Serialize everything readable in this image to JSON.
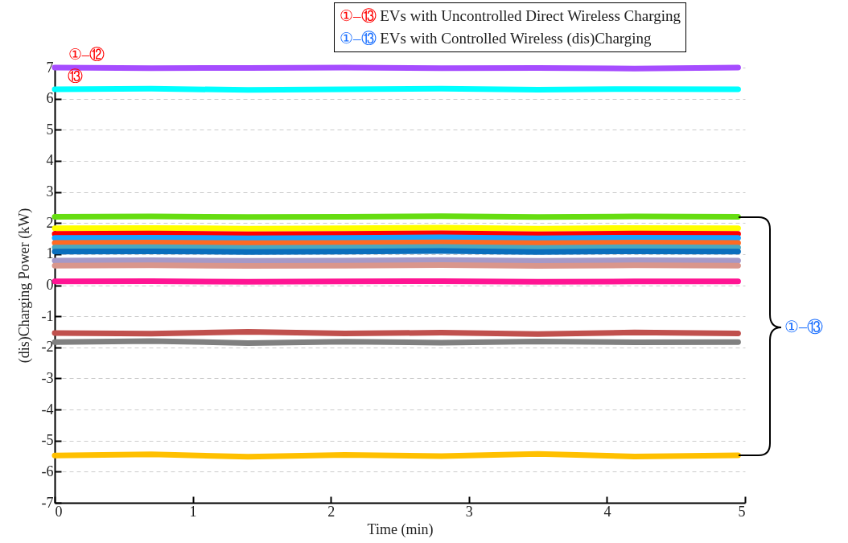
{
  "chart_data": {
    "type": "line",
    "xlabel": "Time (min)",
    "ylabel": "(dis)Charging Power (kW)",
    "x": [
      0,
      0.7,
      1.4,
      2.1,
      2.8,
      3.5,
      4.2,
      4.95
    ],
    "series": [
      {
        "color": "#a64dff",
        "values": [
          7,
          6.98,
          6.99,
          7,
          6.98,
          6.99,
          6.97,
          7
        ]
      },
      {
        "color": "#00ffff",
        "values": [
          6.3,
          6.32,
          6.28,
          6.3,
          6.32,
          6.29,
          6.31,
          6.3
        ]
      },
      {
        "color": "#66dd11",
        "values": [
          2.2,
          2.21,
          2.19,
          2.2,
          2.22,
          2.19,
          2.21,
          2.2
        ]
      },
      {
        "color": "#ffff00",
        "values": [
          1.83,
          1.84,
          1.82,
          1.83,
          1.85,
          1.82,
          1.84,
          1.83
        ]
      },
      {
        "color": "#ff0000",
        "values": [
          1.65,
          1.66,
          1.64,
          1.65,
          1.67,
          1.64,
          1.66,
          1.65
        ]
      },
      {
        "color": "#1aa3ff",
        "values": [
          1.52,
          1.53,
          1.51,
          1.52,
          1.54,
          1.51,
          1.53,
          1.52
        ]
      },
      {
        "color": "#ff6a22",
        "values": [
          1.36,
          1.37,
          1.35,
          1.36,
          1.38,
          1.35,
          1.37,
          1.36
        ]
      },
      {
        "color": "#4aa8c0",
        "values": [
          1.21,
          1.22,
          1.2,
          1.21,
          1.23,
          1.2,
          1.22,
          1.21
        ]
      },
      {
        "color": "#0a6ebd",
        "values": [
          1.08,
          1.09,
          1.07,
          1.08,
          1.1,
          1.07,
          1.09,
          1.08
        ]
      },
      {
        "color": "#a599c8",
        "values": [
          0.79,
          0.8,
          0.78,
          0.79,
          0.81,
          0.78,
          0.8,
          0.79
        ]
      },
      {
        "color": "#d9968c",
        "values": [
          0.63,
          0.64,
          0.62,
          0.63,
          0.65,
          0.62,
          0.64,
          0.63
        ]
      },
      {
        "color": "#ff1493",
        "values": [
          0.12,
          0.13,
          0.11,
          0.12,
          0.13,
          0.11,
          0.12,
          0.12
        ]
      },
      {
        "color": "#c0504d",
        "values": [
          -1.54,
          -1.56,
          -1.5,
          -1.55,
          -1.53,
          -1.57,
          -1.52,
          -1.55
        ]
      },
      {
        "color": "#808080",
        "values": [
          -1.83,
          -1.8,
          -1.86,
          -1.82,
          -1.85,
          -1.81,
          -1.84,
          -1.83
        ]
      },
      {
        "color": "#ffc000",
        "values": [
          -5.48,
          -5.44,
          -5.52,
          -5.46,
          -5.5,
          -5.43,
          -5.51,
          -5.47
        ]
      }
    ],
    "xlim": [
      0,
      5
    ],
    "xticks": [
      0,
      1,
      2,
      3,
      4,
      5
    ],
    "ylim": [
      -7,
      7
    ],
    "yticks": [
      -7,
      -6,
      -5,
      -4,
      -3,
      -2,
      -1,
      0,
      1,
      2,
      3,
      4,
      5,
      6,
      7
    ],
    "grid": "y",
    "legend": false,
    "marker": "none",
    "line_style": "solid",
    "annotations": [
      "①–⑬ EVs with Uncontrolled Direct Wireless Charging",
      "①–⑬ EVs with Controlled Wireless (dis)Charging",
      {
        "text": "①–⑫",
        "x": 0.23,
        "y": 7
      },
      {
        "text": "⑬",
        "x": 0.15,
        "y": 6.3
      },
      "①–⑬"
    ]
  }
}
